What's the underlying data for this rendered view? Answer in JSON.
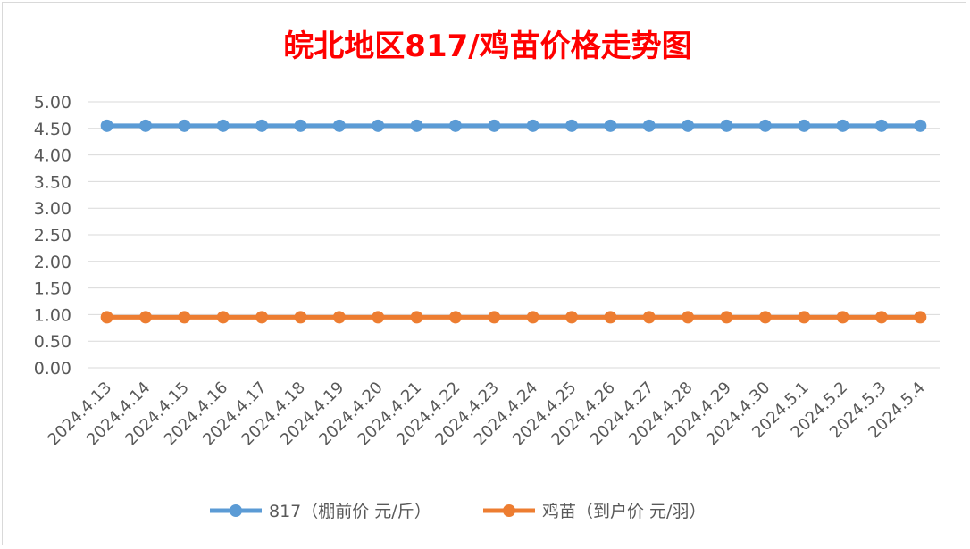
{
  "chart_data": {
    "type": "line",
    "title": "皖北地区817/鸡苗价格走势图",
    "xlabel": "",
    "ylabel": "",
    "ylim": [
      0,
      5
    ],
    "yticks": [
      "0.00",
      "0.50",
      "1.00",
      "1.50",
      "2.00",
      "2.50",
      "3.00",
      "3.50",
      "4.00",
      "4.50",
      "5.00"
    ],
    "grid": true,
    "legend_position": "bottom",
    "categories": [
      "2024.4.13",
      "2024.4.14",
      "2024.4.15",
      "2024.4.16",
      "2024.4.17",
      "2024.4.18",
      "2024.4.19",
      "2024.4.20",
      "2024.4.21",
      "2024.4.22",
      "2024.4.23",
      "2024.4.24",
      "2024.4.25",
      "2024.4.26",
      "2024.4.27",
      "2024.4.28",
      "2024.4.29",
      "2024.4.30",
      "2024.5.1",
      "2024.5.2",
      "2024.5.3",
      "2024.5.4"
    ],
    "series": [
      {
        "name": "817（棚前价 元/斤）",
        "color": "#5b9bd5",
        "values": [
          4.55,
          4.55,
          4.55,
          4.55,
          4.55,
          4.55,
          4.55,
          4.55,
          4.55,
          4.55,
          4.55,
          4.55,
          4.55,
          4.55,
          4.55,
          4.55,
          4.55,
          4.55,
          4.55,
          4.55,
          4.55,
          4.55
        ]
      },
      {
        "name": "鸡苗（到户价 元/羽）",
        "color": "#ed7d31",
        "values": [
          0.95,
          0.95,
          0.95,
          0.95,
          0.95,
          0.95,
          0.95,
          0.95,
          0.95,
          0.95,
          0.95,
          0.95,
          0.95,
          0.95,
          0.95,
          0.95,
          0.95,
          0.95,
          0.95,
          0.95,
          0.95,
          0.95
        ]
      }
    ],
    "title_color": "#ff0000"
  }
}
